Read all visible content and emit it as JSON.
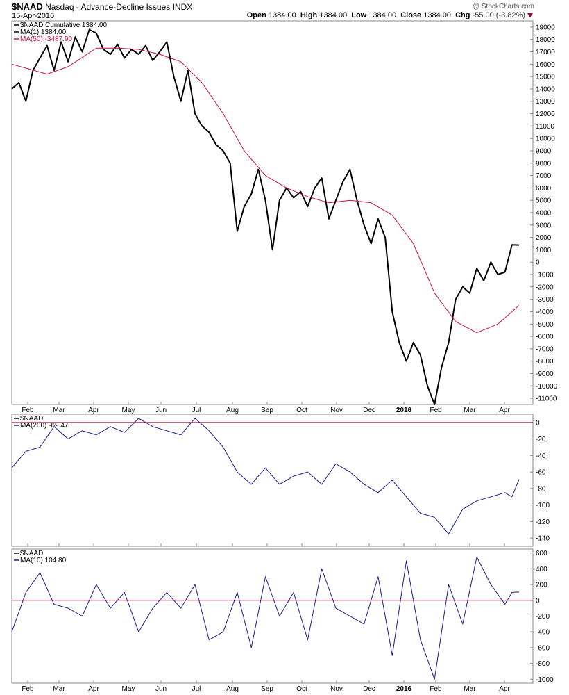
{
  "header": {
    "symbol": "$NAAD",
    "description": "Nasdaq - Advance-Decline Issues",
    "exchange": "INDX",
    "date": "15-Apr-2016",
    "credit": "@ StockCharts.com",
    "open_label": "Open",
    "open": "1384.00",
    "high_label": "High",
    "high": "1384.00",
    "low_label": "Low",
    "low": "1384.00",
    "close_label": "Close",
    "close": "1384.00",
    "chg_label": "Chg",
    "chg": "-55.00 (-3.82%)"
  },
  "colors": {
    "price": "#000000",
    "ma50": "#cc1040",
    "indicator": "#1a1a8c",
    "zero_line": "#a01030"
  },
  "chart_data": [
    {
      "type": "line",
      "panel": "main",
      "legend": [
        "$NAAD Cumulative 1384.00",
        "MA(1) 1384.00",
        "MA(50) -3487.90"
      ],
      "x_tick_labels": [
        "Feb",
        "Mar",
        "Apr",
        "May",
        "Jun",
        "Jul",
        "Aug",
        "Sep",
        "Oct",
        "Nov",
        "Dec",
        "2016",
        "Feb",
        "Mar",
        "Apr"
      ],
      "y_ticks": [
        19000,
        18000,
        17000,
        16000,
        15000,
        14000,
        13000,
        12000,
        11000,
        10000,
        9000,
        8000,
        7000,
        6000,
        5000,
        4000,
        3000,
        2000,
        1000,
        0,
        -1000,
        -2000,
        -3000,
        -4000,
        -5000,
        -6000,
        -7000,
        -8000,
        -9000,
        -10000,
        -11000
      ],
      "ylim": [
        -11500,
        19500
      ],
      "x_index_range": [
        0,
        72
      ],
      "series": [
        {
          "name": "$NAAD Cumulative",
          "x": [
            0,
            1,
            2,
            3,
            4,
            5,
            6,
            7,
            8,
            9,
            10,
            11,
            12,
            13,
            14,
            15,
            16,
            17,
            18,
            19,
            20,
            21,
            22,
            23,
            24,
            25,
            26,
            27,
            28,
            29,
            30,
            31,
            32,
            33,
            34,
            35,
            36,
            37,
            38,
            39,
            40,
            41,
            42,
            43,
            44,
            45,
            46,
            47,
            48,
            49,
            50,
            51,
            52,
            53,
            54,
            55,
            56,
            57,
            58,
            59,
            60,
            61,
            62,
            63,
            64,
            65,
            66,
            67,
            68,
            69,
            70,
            71,
            72
          ],
          "values": [
            14000,
            14500,
            13000,
            15500,
            16500,
            17500,
            15500,
            17800,
            16200,
            18200,
            17000,
            18800,
            18500,
            17200,
            16800,
            17600,
            16500,
            17200,
            16800,
            17500,
            16300,
            17000,
            17800,
            15000,
            13000,
            15500,
            12000,
            11000,
            10500,
            9500,
            9000,
            8000,
            2500,
            4500,
            5500,
            7500,
            5000,
            1000,
            5000,
            6000,
            5200,
            5700,
            4500,
            6000,
            6800,
            3500,
            5000,
            6500,
            7500,
            5000,
            3000,
            1500,
            3500,
            2000,
            -4000,
            -6500,
            -8000,
            -6500,
            -7500,
            -10000,
            -11500,
            -8500,
            -6500,
            -3000,
            -2000,
            -2500,
            -500,
            -1500,
            0,
            -1000,
            -800,
            1400,
            1384
          ]
        },
        {
          "name": "MA(50)",
          "x": [
            0,
            5,
            8,
            12,
            15,
            18,
            21,
            24,
            27,
            30,
            33,
            36,
            39,
            42,
            45,
            48,
            51,
            54,
            57,
            60,
            63,
            66,
            69,
            72
          ],
          "values": [
            16000,
            15200,
            15800,
            17300,
            17300,
            17200,
            16800,
            16200,
            14500,
            12000,
            9000,
            7000,
            6000,
            5300,
            4800,
            5000,
            4800,
            3800,
            1500,
            -2500,
            -4800,
            -5700,
            -5000,
            -3500
          ]
        }
      ]
    },
    {
      "type": "line",
      "panel": "middle",
      "legend": [
        "$NAAD",
        "MA(200) -69.47"
      ],
      "y_ticks": [
        0,
        -20,
        -40,
        -60,
        -80,
        -100,
        -120,
        -140
      ],
      "ylim": [
        -150,
        10
      ],
      "x_index_range": [
        0,
        72
      ],
      "reference_line": 0,
      "series": [
        {
          "name": "MA(200)",
          "x": [
            0,
            2,
            4,
            6,
            8,
            10,
            12,
            14,
            16,
            18,
            20,
            22,
            24,
            26,
            28,
            30,
            32,
            34,
            36,
            38,
            40,
            42,
            44,
            46,
            48,
            50,
            52,
            54,
            56,
            58,
            60,
            62,
            64,
            66,
            68,
            70,
            71,
            72
          ],
          "values": [
            -55,
            -35,
            -30,
            -5,
            -20,
            -10,
            -15,
            -5,
            -12,
            5,
            -5,
            -10,
            -15,
            5,
            -10,
            -30,
            -60,
            -75,
            -55,
            -75,
            -65,
            -60,
            -75,
            -50,
            -60,
            -75,
            -85,
            -70,
            -90,
            -110,
            -115,
            -135,
            -105,
            -95,
            -90,
            -85,
            -90,
            -69
          ]
        }
      ]
    },
    {
      "type": "line",
      "panel": "bottom",
      "legend": [
        "$NAAD",
        "MA(10) 104.80"
      ],
      "y_ticks": [
        600,
        400,
        200,
        0,
        -200,
        -400,
        -600,
        -800,
        -1000
      ],
      "ylim": [
        -1050,
        650
      ],
      "x_index_range": [
        0,
        72
      ],
      "reference_line": 0,
      "series": [
        {
          "name": "MA(10)",
          "x": [
            0,
            2,
            4,
            6,
            8,
            10,
            12,
            14,
            16,
            18,
            20,
            22,
            24,
            26,
            28,
            30,
            32,
            34,
            36,
            38,
            40,
            42,
            44,
            46,
            48,
            50,
            52,
            54,
            56,
            58,
            60,
            62,
            64,
            66,
            68,
            70,
            71,
            72
          ],
          "values": [
            -400,
            100,
            350,
            -50,
            -100,
            -200,
            200,
            -100,
            100,
            -400,
            -100,
            100,
            -100,
            200,
            -500,
            -400,
            100,
            -600,
            300,
            -200,
            100,
            -500,
            400,
            -100,
            -200,
            -300,
            300,
            -700,
            500,
            -500,
            -1000,
            200,
            -300,
            550,
            200,
            -50,
            100,
            105
          ]
        }
      ]
    }
  ]
}
